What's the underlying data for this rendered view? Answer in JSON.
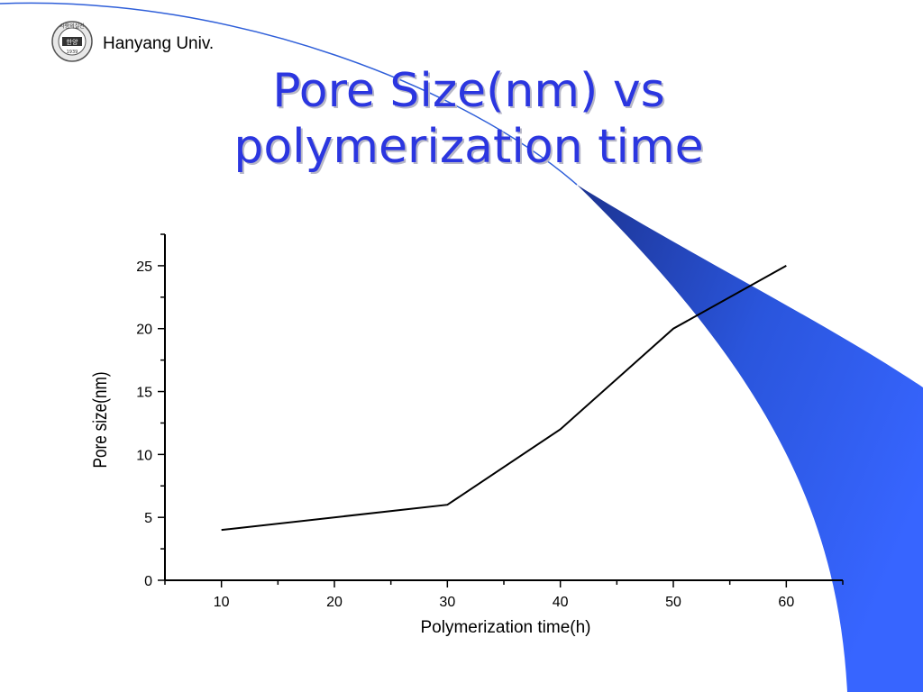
{
  "header": {
    "institution": "Hanyang Univ.",
    "logo": {
      "icon": "university-seal-icon",
      "ring_text": "사랑의실천",
      "center_text": "한양",
      "year_text": "1939"
    }
  },
  "slide": {
    "title_line1": "Pore Size(nm) vs",
    "title_line2": "polymerization time"
  },
  "theme": {
    "title_color": "#2b36e0",
    "swoosh_dark": "#1c3391",
    "swoosh_light": "#3765ff",
    "arc_color": "#2f5fd9"
  },
  "chart_data": {
    "type": "line",
    "title": "",
    "xlabel": "Polymerization time(h)",
    "ylabel": "Pore size(nm)",
    "xlim": [
      5,
      65
    ],
    "ylim": [
      0,
      27.5
    ],
    "xticks": [
      10,
      20,
      30,
      40,
      50,
      60
    ],
    "yticks": [
      0,
      5,
      10,
      15,
      20,
      25
    ],
    "series": [
      {
        "x": [
          10,
          30,
          40,
          50,
          60
        ],
        "values": [
          4,
          6,
          12,
          20,
          25
        ],
        "color": "#000000"
      }
    ],
    "grid": false,
    "legend": "none"
  }
}
